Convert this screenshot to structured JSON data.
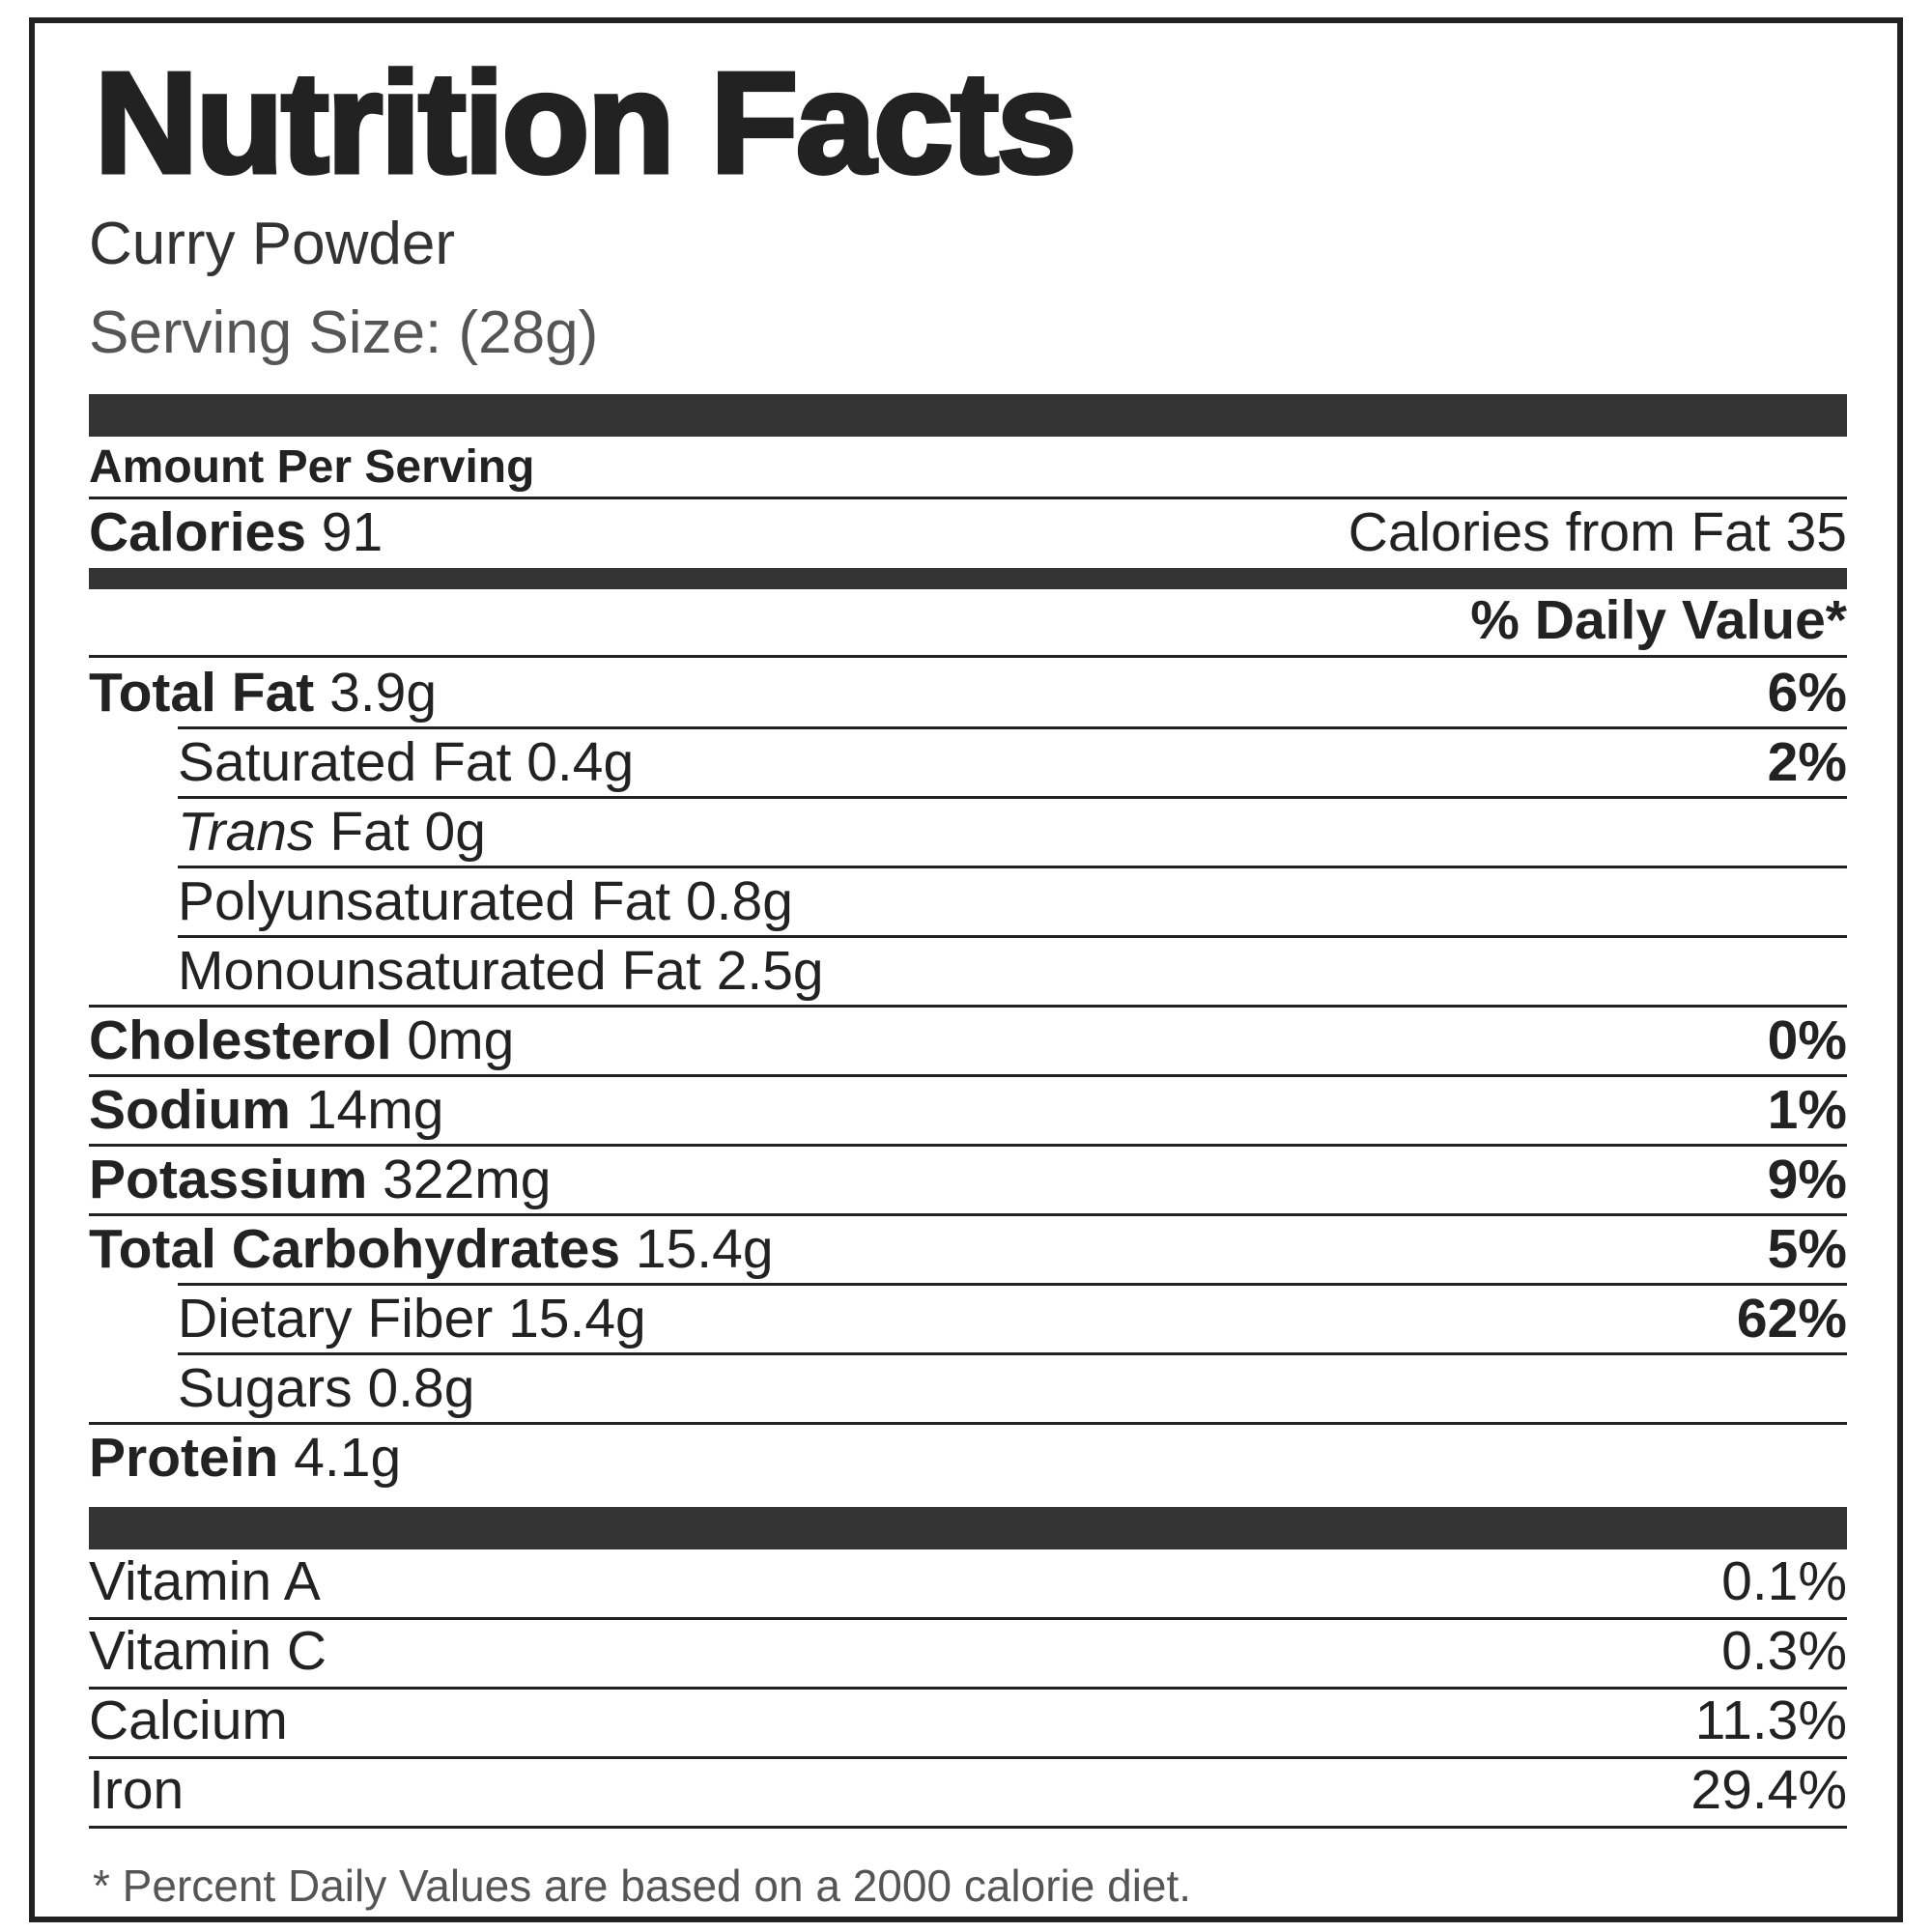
{
  "label": {
    "title": "Nutrition Facts",
    "product": "Curry Powder",
    "serving": "Serving Size: (28g)",
    "amount_header": "Amount Per Serving",
    "calories_label": "Calories",
    "calories_value": "91",
    "calories_from_fat": "Calories from Fat 35",
    "daily_value_header": "% Daily Value*",
    "nutrients": {
      "total_fat": {
        "name": "Total Fat",
        "amount": "3.9g",
        "dv": "6%"
      },
      "saturated_fat": {
        "name": "Saturated Fat",
        "amount": "0.4g",
        "dv": "2%"
      },
      "trans_fat": {
        "name_italic": "Trans",
        "name": "Fat",
        "amount": "0g"
      },
      "polyunsaturated_fat": {
        "name": "Polyunsaturated Fat",
        "amount": "0.8g"
      },
      "monounsaturated_fat": {
        "name": "Monounsaturated Fat",
        "amount": "2.5g"
      },
      "cholesterol": {
        "name": "Cholesterol",
        "amount": "0mg",
        "dv": "0%"
      },
      "sodium": {
        "name": "Sodium",
        "amount": "14mg",
        "dv": "1%"
      },
      "potassium": {
        "name": "Potassium",
        "amount": "322mg",
        "dv": "9%"
      },
      "total_carbohydrates": {
        "name": "Total Carbohydrates",
        "amount": "15.4g",
        "dv": "5%"
      },
      "dietary_fiber": {
        "name": "Dietary Fiber",
        "amount": "15.4g",
        "dv": "62%"
      },
      "sugars": {
        "name": "Sugars",
        "amount": "0.8g"
      },
      "protein": {
        "name": "Protein",
        "amount": "4.1g"
      }
    },
    "vitamins": {
      "vitamin_a": {
        "name": "Vitamin A",
        "dv": "0.1%"
      },
      "vitamin_c": {
        "name": "Vitamin C",
        "dv": "0.3%"
      },
      "calcium": {
        "name": "Calcium",
        "dv": "11.3%"
      },
      "iron": {
        "name": "Iron",
        "dv": "29.4%"
      }
    },
    "footnote": "* Percent Daily Values are based on a 2000 calorie diet."
  }
}
